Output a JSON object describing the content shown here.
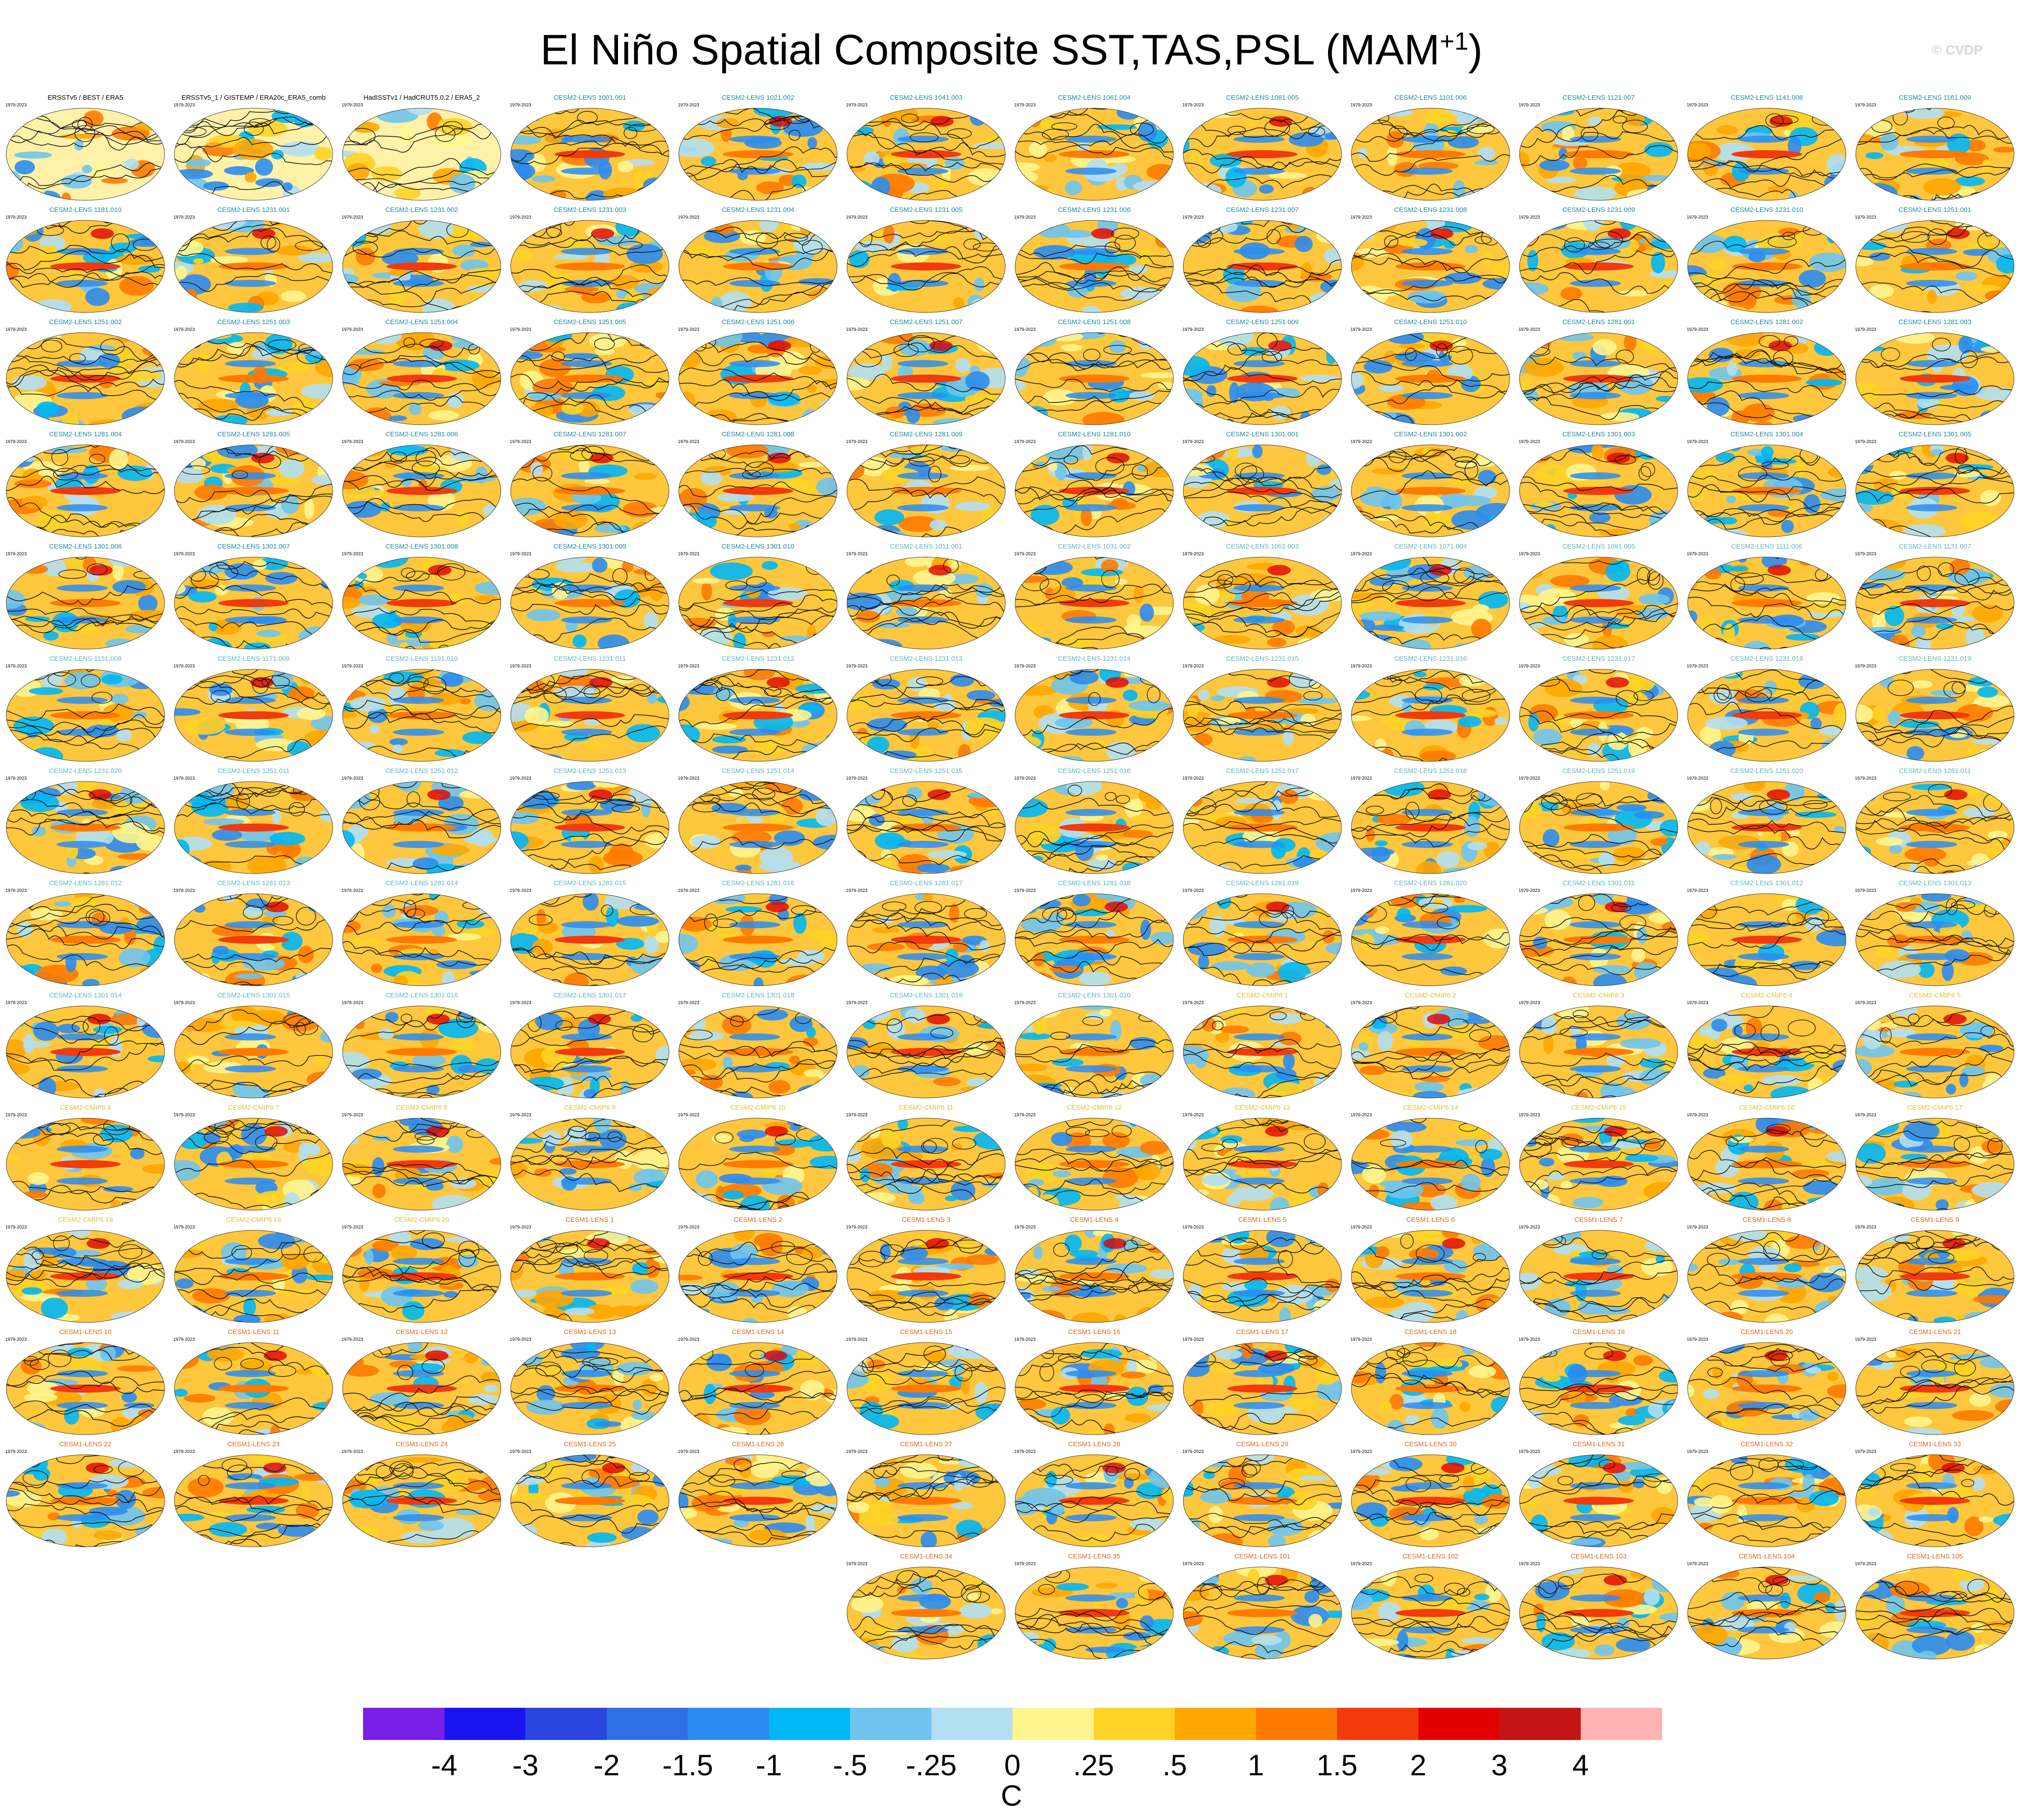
{
  "title": "El Niño Spatial Composite SST,TAS,PSL (MAM",
  "title_sup": "+1",
  "title_close": ")",
  "copyright": "© CVDP",
  "period": "1979-2023",
  "colors": {
    "orange_title": "#e0661a",
    "teal_title": "#1a8ca8",
    "lightteal_title": "#59b8c9",
    "yellow_title": "#d9c43a",
    "black_title": "#000000"
  },
  "chart_data": {
    "type": "heatmap",
    "description_units": "C",
    "colorbar": {
      "labels": [
        "-4",
        "-3",
        "-2",
        "-1.5",
        "-1",
        "-.5",
        "-.25",
        "0",
        ".25",
        ".5",
        "1",
        "1.5",
        "2",
        "3",
        "4"
      ],
      "colors": [
        "#7a1ee8",
        "#1a14f0",
        "#2b45e0",
        "#2f6fe6",
        "#2b8cf0",
        "#00b7f5",
        "#6fc4ee",
        "#b3dff2",
        "#fff58f",
        "#ffd326",
        "#ffa600",
        "#ff7a00",
        "#f23a0d",
        "#e00000",
        "#c41414",
        "#ffb3b3"
      ],
      "units": "C"
    },
    "panels": [
      {
        "name": "ERSSTv5 / BEST / ERA5",
        "color": "black_title"
      },
      {
        "name": "ERSSTv5_1 / GISTEMP / ERA20c_ERA5_comb",
        "color": "black_title"
      },
      {
        "name": "HadISSTv1 / HadCRUT5.0.2 / ERA5_2",
        "color": "black_title"
      },
      {
        "name": "CESM2-LENS 1001.001",
        "color": "teal_title"
      },
      {
        "name": "CESM2-LENS 1021.002",
        "color": "teal_title"
      },
      {
        "name": "CESM2-LENS 1041.003",
        "color": "teal_title"
      },
      {
        "name": "CESM2-LENS 1061.004",
        "color": "teal_title"
      },
      {
        "name": "CESM2-LENS 1081.005",
        "color": "teal_title"
      },
      {
        "name": "CESM2-LENS 1101.006",
        "color": "teal_title"
      },
      {
        "name": "CESM2-LENS 1121.007",
        "color": "teal_title"
      },
      {
        "name": "CESM2-LENS 1141.008",
        "color": "teal_title"
      },
      {
        "name": "CESM2-LENS 1161.009",
        "color": "teal_title"
      },
      {
        "name": "CESM2-LENS 1181.010",
        "color": "teal_title"
      },
      {
        "name": "CESM2-LENS 1231.001",
        "color": "teal_title"
      },
      {
        "name": "CESM2-LENS 1231.002",
        "color": "teal_title"
      },
      {
        "name": "CESM2-LENS 1231.003",
        "color": "teal_title"
      },
      {
        "name": "CESM2-LENS 1231.004",
        "color": "teal_title"
      },
      {
        "name": "CESM2-LENS 1231.005",
        "color": "teal_title"
      },
      {
        "name": "CESM2-LENS 1231.006",
        "color": "teal_title"
      },
      {
        "name": "CESM2-LENS 1231.007",
        "color": "teal_title"
      },
      {
        "name": "CESM2-LENS 1231.008",
        "color": "teal_title"
      },
      {
        "name": "CESM2-LENS 1231.009",
        "color": "teal_title"
      },
      {
        "name": "CESM2-LENS 1231.010",
        "color": "teal_title"
      },
      {
        "name": "CESM2-LENS 1251.001",
        "color": "teal_title"
      },
      {
        "name": "CESM2-LENS 1251.002",
        "color": "teal_title"
      },
      {
        "name": "CESM2-LENS 1251.003",
        "color": "teal_title"
      },
      {
        "name": "CESM2-LENS 1251.004",
        "color": "teal_title"
      },
      {
        "name": "CESM2-LENS 1251.005",
        "color": "teal_title"
      },
      {
        "name": "CESM2-LENS 1251.006",
        "color": "teal_title"
      },
      {
        "name": "CESM2-LENS 1251.007",
        "color": "teal_title"
      },
      {
        "name": "CESM2-LENS 1251.008",
        "color": "teal_title"
      },
      {
        "name": "CESM2-LENS 1251.009",
        "color": "teal_title"
      },
      {
        "name": "CESM2-LENS 1251.010",
        "color": "teal_title"
      },
      {
        "name": "CESM2-LENS 1281.001",
        "color": "teal_title"
      },
      {
        "name": "CESM2-LENS 1281.002",
        "color": "teal_title"
      },
      {
        "name": "CESM2-LENS 1281.003",
        "color": "teal_title"
      },
      {
        "name": "CESM2-LENS 1281.004",
        "color": "teal_title"
      },
      {
        "name": "CESM2-LENS 1281.005",
        "color": "teal_title"
      },
      {
        "name": "CESM2-LENS 1281.006",
        "color": "teal_title"
      },
      {
        "name": "CESM2-LENS 1281.007",
        "color": "teal_title"
      },
      {
        "name": "CESM2-LENS 1281.008",
        "color": "teal_title"
      },
      {
        "name": "CESM2-LENS 1281.009",
        "color": "teal_title"
      },
      {
        "name": "CESM2-LENS 1281.010",
        "color": "teal_title"
      },
      {
        "name": "CESM2-LENS 1301.001",
        "color": "teal_title"
      },
      {
        "name": "CESM2-LENS 1301.002",
        "color": "teal_title"
      },
      {
        "name": "CESM2-LENS 1301.003",
        "color": "teal_title"
      },
      {
        "name": "CESM2-LENS 1301.004",
        "color": "teal_title"
      },
      {
        "name": "CESM2-LENS 1301.005",
        "color": "teal_title"
      },
      {
        "name": "CESM2-LENS 1301.006",
        "color": "teal_title"
      },
      {
        "name": "CESM2-LENS 1301.007",
        "color": "teal_title"
      },
      {
        "name": "CESM2-LENS 1301.008",
        "color": "teal_title"
      },
      {
        "name": "CESM2-LENS 1301.009",
        "color": "teal_title"
      },
      {
        "name": "CESM2-LENS 1301.010",
        "color": "teal_title"
      },
      {
        "name": "CESM2-LENS 1011.001",
        "color": "lightteal_title"
      },
      {
        "name": "CESM2-LENS 1031.002",
        "color": "lightteal_title"
      },
      {
        "name": "CESM2-LENS 1051.003",
        "color": "lightteal_title"
      },
      {
        "name": "CESM2-LENS 1071.004",
        "color": "lightteal_title"
      },
      {
        "name": "CESM2-LENS 1091.005",
        "color": "lightteal_title"
      },
      {
        "name": "CESM2-LENS 1111.006",
        "color": "lightteal_title"
      },
      {
        "name": "CESM2-LENS 1131.007",
        "color": "lightteal_title"
      },
      {
        "name": "CESM2-LENS 1151.008",
        "color": "lightteal_title"
      },
      {
        "name": "CESM2-LENS 1171.009",
        "color": "lightteal_title"
      },
      {
        "name": "CESM2-LENS 1191.010",
        "color": "lightteal_title"
      },
      {
        "name": "CESM2-LENS 1231.011",
        "color": "lightteal_title"
      },
      {
        "name": "CESM2-LENS 1231.012",
        "color": "lightteal_title"
      },
      {
        "name": "CESM2-LENS 1231.013",
        "color": "lightteal_title"
      },
      {
        "name": "CESM2-LENS 1231.014",
        "color": "lightteal_title"
      },
      {
        "name": "CESM2-LENS 1231.015",
        "color": "lightteal_title"
      },
      {
        "name": "CESM2-LENS 1231.016",
        "color": "lightteal_title"
      },
      {
        "name": "CESM2-LENS 1231.017",
        "color": "lightteal_title"
      },
      {
        "name": "CESM2-LENS 1231.018",
        "color": "lightteal_title"
      },
      {
        "name": "CESM2-LENS 1231.019",
        "color": "lightteal_title"
      },
      {
        "name": "CESM2-LENS 1231.020",
        "color": "lightteal_title"
      },
      {
        "name": "CESM2-LENS 1251.011",
        "color": "lightteal_title"
      },
      {
        "name": "CESM2-LENS 1251.012",
        "color": "lightteal_title"
      },
      {
        "name": "CESM2-LENS 1251.013",
        "color": "lightteal_title"
      },
      {
        "name": "CESM2-LENS 1251.014",
        "color": "lightteal_title"
      },
      {
        "name": "CESM2-LENS 1251.015",
        "color": "lightteal_title"
      },
      {
        "name": "CESM2-LENS 1251.016",
        "color": "lightteal_title"
      },
      {
        "name": "CESM2-LENS 1251.017",
        "color": "lightteal_title"
      },
      {
        "name": "CESM2-LENS 1251.018",
        "color": "lightteal_title"
      },
      {
        "name": "CESM2-LENS 1251.019",
        "color": "lightteal_title"
      },
      {
        "name": "CESM2-LENS 1251.020",
        "color": "lightteal_title"
      },
      {
        "name": "CESM2-LENS 1281.011",
        "color": "lightteal_title"
      },
      {
        "name": "CESM2-LENS 1281.012",
        "color": "lightteal_title"
      },
      {
        "name": "CESM2-LENS 1281.013",
        "color": "lightteal_title"
      },
      {
        "name": "CESM2-LENS 1281.014",
        "color": "lightteal_title"
      },
      {
        "name": "CESM2-LENS 1281.015",
        "color": "lightteal_title"
      },
      {
        "name": "CESM2-LENS 1281.016",
        "color": "lightteal_title"
      },
      {
        "name": "CESM2-LENS 1281.017",
        "color": "lightteal_title"
      },
      {
        "name": "CESM2-LENS 1281.018",
        "color": "lightteal_title"
      },
      {
        "name": "CESM2-LENS 1281.019",
        "color": "lightteal_title"
      },
      {
        "name": "CESM2-LENS 1281.020",
        "color": "lightteal_title"
      },
      {
        "name": "CESM2-LENS 1301.011",
        "color": "lightteal_title"
      },
      {
        "name": "CESM2-LENS 1301.012",
        "color": "lightteal_title"
      },
      {
        "name": "CESM2-LENS 1301.013",
        "color": "lightteal_title"
      },
      {
        "name": "CESM2-LENS 1301.014",
        "color": "lightteal_title"
      },
      {
        "name": "CESM2-LENS 1301.015",
        "color": "lightteal_title"
      },
      {
        "name": "CESM2-LENS 1301.016",
        "color": "lightteal_title"
      },
      {
        "name": "CESM2-LENS 1301.017",
        "color": "lightteal_title"
      },
      {
        "name": "CESM2-LENS 1301.018",
        "color": "lightteal_title"
      },
      {
        "name": "CESM2-LENS 1301.019",
        "color": "lightteal_title"
      },
      {
        "name": "CESM2-LENS 1301.020",
        "color": "lightteal_title"
      },
      {
        "name": "CESM2-CMIP6 1",
        "color": "yellow_title"
      },
      {
        "name": "CESM2-CMIP6 2",
        "color": "yellow_title"
      },
      {
        "name": "CESM2-CMIP6 3",
        "color": "yellow_title"
      },
      {
        "name": "CESM2-CMIP6 4",
        "color": "yellow_title"
      },
      {
        "name": "CESM2-CMIP6 5",
        "color": "yellow_title"
      },
      {
        "name": "CESM2-CMIP6 6",
        "color": "yellow_title"
      },
      {
        "name": "CESM2-CMIP6 7",
        "color": "yellow_title"
      },
      {
        "name": "CESM2-CMIP6 8",
        "color": "yellow_title"
      },
      {
        "name": "CESM2-CMIP6 9",
        "color": "yellow_title"
      },
      {
        "name": "CESM2-CMIP6 10",
        "color": "yellow_title"
      },
      {
        "name": "CESM2-CMIP6 11",
        "color": "yellow_title"
      },
      {
        "name": "CESM2-CMIP6 12",
        "color": "yellow_title"
      },
      {
        "name": "CESM2-CMIP6 13",
        "color": "yellow_title"
      },
      {
        "name": "CESM2-CMIP6 14",
        "color": "yellow_title"
      },
      {
        "name": "CESM2-CMIP6 15",
        "color": "yellow_title"
      },
      {
        "name": "CESM2-CMIP6 16",
        "color": "yellow_title"
      },
      {
        "name": "CESM2-CMIP6 17",
        "color": "yellow_title"
      },
      {
        "name": "CESM2-CMIP6 18",
        "color": "yellow_title"
      },
      {
        "name": "CESM2-CMIP6 19",
        "color": "yellow_title"
      },
      {
        "name": "CESM2-CMIP6 20",
        "color": "yellow_title"
      },
      {
        "name": "CESM1-LENS 1",
        "color": "orange_title"
      },
      {
        "name": "CESM1-LENS 2",
        "color": "orange_title"
      },
      {
        "name": "CESM1-LENS 3",
        "color": "orange_title"
      },
      {
        "name": "CESM1-LENS 4",
        "color": "orange_title"
      },
      {
        "name": "CESM1-LENS 5",
        "color": "orange_title"
      },
      {
        "name": "CESM1-LENS 6",
        "color": "orange_title"
      },
      {
        "name": "CESM1-LENS 7",
        "color": "orange_title"
      },
      {
        "name": "CESM1-LENS 8",
        "color": "orange_title"
      },
      {
        "name": "CESM1-LENS 9",
        "color": "orange_title"
      },
      {
        "name": "CESM1-LENS 10",
        "color": "orange_title"
      },
      {
        "name": "CESM1-LENS 11",
        "color": "orange_title"
      },
      {
        "name": "CESM1-LENS 12",
        "color": "orange_title"
      },
      {
        "name": "CESM1-LENS 13",
        "color": "orange_title"
      },
      {
        "name": "CESM1-LENS 14",
        "color": "orange_title"
      },
      {
        "name": "CESM1-LENS 15",
        "color": "orange_title"
      },
      {
        "name": "CESM1-LENS 16",
        "color": "orange_title"
      },
      {
        "name": "CESM1-LENS 17",
        "color": "orange_title"
      },
      {
        "name": "CESM1-LENS 18",
        "color": "orange_title"
      },
      {
        "name": "CESM1-LENS 19",
        "color": "orange_title"
      },
      {
        "name": "CESM1-LENS 20",
        "color": "orange_title"
      },
      {
        "name": "CESM1-LENS 21",
        "color": "orange_title"
      },
      {
        "name": "CESM1-LENS 22",
        "color": "orange_title"
      },
      {
        "name": "CESM1-LENS 23",
        "color": "orange_title"
      },
      {
        "name": "CESM1-LENS 24",
        "color": "orange_title"
      },
      {
        "name": "CESM1-LENS 25",
        "color": "orange_title"
      },
      {
        "name": "CESM1-LENS 26",
        "color": "orange_title"
      },
      {
        "name": "CESM1-LENS 27",
        "color": "orange_title"
      },
      {
        "name": "CESM1-LENS 28",
        "color": "orange_title"
      },
      {
        "name": "CESM1-LENS 29",
        "color": "orange_title"
      },
      {
        "name": "CESM1-LENS 30",
        "color": "orange_title"
      },
      {
        "name": "CESM1-LENS 31",
        "color": "orange_title"
      },
      {
        "name": "CESM1-LENS 32",
        "color": "orange_title"
      },
      {
        "name": "CESM1-LENS 33",
        "color": "orange_title"
      },
      {
        "name": "CESM1-LENS 34",
        "color": "orange_title"
      },
      {
        "name": "CESM1-LENS 35",
        "color": "orange_title"
      },
      {
        "name": "CESM1-LENS 101",
        "color": "orange_title"
      },
      {
        "name": "CESM1-LENS 102",
        "color": "orange_title"
      },
      {
        "name": "CESM1-LENS 103",
        "color": "orange_title"
      },
      {
        "name": "CESM1-LENS 104",
        "color": "orange_title"
      },
      {
        "name": "CESM1-LENS 105",
        "color": "orange_title"
      }
    ]
  }
}
